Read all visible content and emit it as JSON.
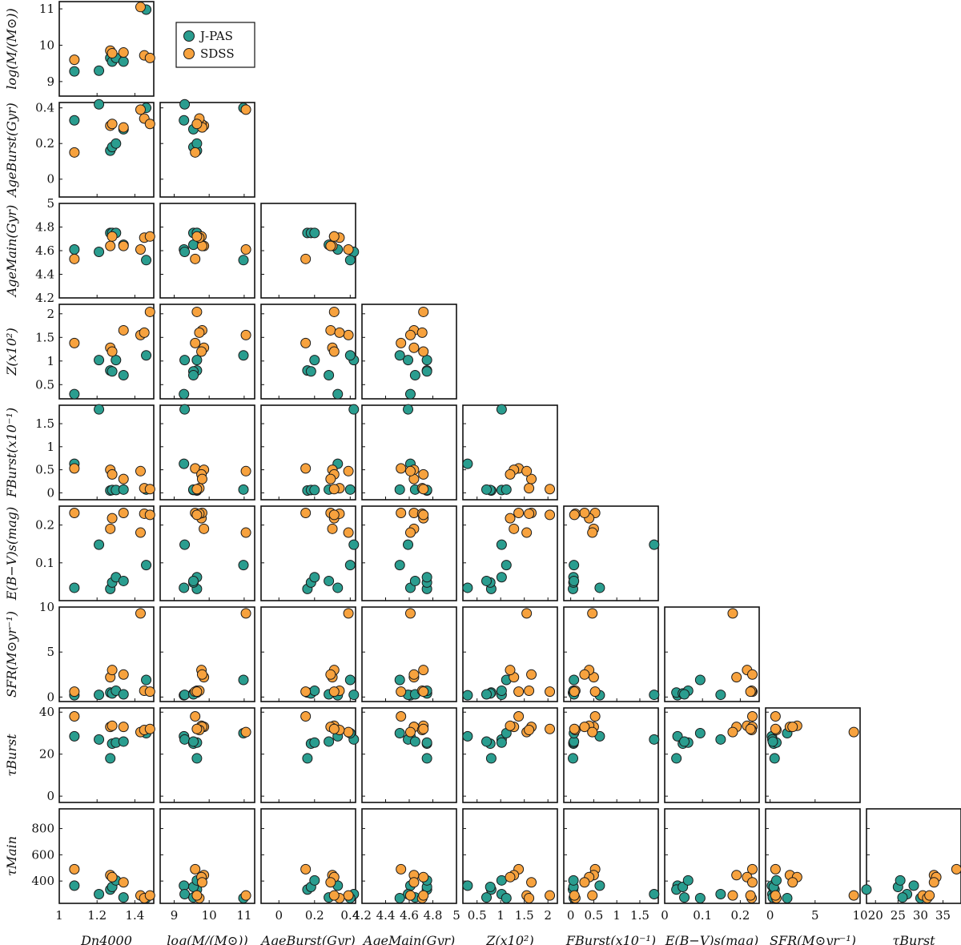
{
  "chart_data": {
    "type": "scatter",
    "title": "",
    "legend": {
      "placement": "top-right of first panel"
    },
    "series": [
      {
        "name": "J-PAS",
        "color": "#2a9d8f"
      },
      {
        "name": "SDSS",
        "color": "#f7a23e"
      }
    ],
    "variables": [
      {
        "key": "dn4000",
        "label": "Dn4000",
        "range": [
          1.0,
          1.5
        ],
        "ticks": [
          1,
          1.2,
          1.4
        ]
      },
      {
        "key": "logm",
        "label": "log(M/(M⊙))",
        "range": [
          8.6,
          11.3
        ],
        "ticks": [
          9,
          10,
          11
        ]
      },
      {
        "key": "ageburst",
        "label": "AgeBurst(Gyr)",
        "range": [
          -0.1,
          0.43
        ],
        "ticks": [
          0,
          0.2,
          0.4
        ]
      },
      {
        "key": "agemain",
        "label": "AgeMain(Gyr)",
        "range": [
          4.2,
          5.0
        ],
        "ticks": [
          4.2,
          4.4,
          4.6,
          4.8,
          5
        ]
      },
      {
        "key": "z",
        "label": "Z(x10²)",
        "range": [
          0.2,
          2.2
        ],
        "ticks": [
          0.5,
          1,
          1.5,
          2
        ]
      },
      {
        "key": "fburst",
        "label": "FBurst(x10⁻¹)",
        "range": [
          -0.15,
          1.9
        ],
        "ticks": [
          0,
          0.5,
          1,
          1.5
        ]
      },
      {
        "key": "ebv",
        "label": "E(B−V)s(mag)",
        "range": [
          0.0,
          0.25
        ],
        "ticks": [
          0,
          0.1,
          0.2
        ]
      },
      {
        "key": "sfr",
        "label": "SFR(M⊙yr⁻¹)",
        "range": [
          -0.5,
          10
        ],
        "ticks": [
          0,
          5,
          10
        ]
      },
      {
        "key": "tauburst",
        "label": "τBurst",
        "range": [
          18,
          39
        ],
        "ticks": [
          20,
          25,
          30,
          35
        ]
      },
      {
        "key": "taumain",
        "label": "τMain",
        "range": [
          230,
          950
        ],
        "ticks": [
          400,
          600,
          800
        ]
      }
    ],
    "row_ranges": {
      "logm": [
        8.6,
        11.2
      ],
      "ageburst": [
        -0.1,
        0.43
      ],
      "agemain": [
        4.2,
        5.0
      ],
      "z": [
        0.2,
        2.2
      ],
      "fburst": [
        -0.15,
        1.9
      ],
      "ebv": [
        0.0,
        0.25
      ],
      "sfr": [
        -0.5,
        10
      ],
      "tauburst": [
        -3,
        42
      ],
      "taumain": [
        230,
        950
      ]
    },
    "row_ticks": {
      "logm": [
        9,
        10,
        11
      ],
      "ageburst": [
        0,
        0.2,
        0.4
      ],
      "agemain": [
        4.2,
        4.4,
        4.6,
        4.8,
        5
      ],
      "z": [
        0.5,
        1,
        1.5,
        2
      ],
      "fburst": [
        0,
        0.5,
        1,
        1.5
      ],
      "ebv": [
        0.1,
        0.2
      ],
      "sfr": [
        0,
        5,
        10
      ],
      "tauburst": [
        0,
        20,
        40
      ],
      "taumain": [
        400,
        600,
        800
      ]
    },
    "points": {
      "J-PAS": [
        {
          "dn4000": 1.08,
          "logm": 9.28,
          "ageburst": 0.33,
          "agemain": 4.61,
          "z": 0.3,
          "fburst": 0.63,
          "ebv": 0.034,
          "sfr": 0.2,
          "tauburst": 28.5,
          "taumain": 365
        },
        {
          "dn4000": 1.21,
          "logm": 9.3,
          "ageburst": 0.42,
          "agemain": 4.59,
          "z": 1.02,
          "fburst": 1.81,
          "ebv": 0.148,
          "sfr": 0.25,
          "tauburst": 27.0,
          "taumain": 300
        },
        {
          "dn4000": 1.27,
          "logm": 9.65,
          "ageburst": 0.16,
          "agemain": 4.75,
          "z": 0.8,
          "fburst": 0.05,
          "ebv": 0.031,
          "sfr": 0.5,
          "tauburst": 18.0,
          "taumain": 335
        },
        {
          "dn4000": 1.28,
          "logm": 9.55,
          "ageburst": 0.18,
          "agemain": 4.75,
          "z": 0.78,
          "fburst": 0.06,
          "ebv": 0.048,
          "sfr": 0.4,
          "tauburst": 25.0,
          "taumain": 355
        },
        {
          "dn4000": 1.3,
          "logm": 9.65,
          "ageburst": 0.2,
          "agemain": 4.75,
          "z": 1.02,
          "fburst": 0.06,
          "ebv": 0.062,
          "sfr": 0.7,
          "tauburst": 25.5,
          "taumain": 405
        },
        {
          "dn4000": 1.34,
          "logm": 9.55,
          "ageburst": 0.28,
          "agemain": 4.65,
          "z": 0.7,
          "fburst": 0.07,
          "ebv": 0.052,
          "sfr": 0.3,
          "tauburst": 26.0,
          "taumain": 275
        },
        {
          "dn4000": 1.46,
          "logm": 10.98,
          "ageburst": 0.4,
          "agemain": 4.52,
          "z": 1.12,
          "fburst": 0.07,
          "ebv": 0.094,
          "sfr": 1.9,
          "tauburst": 30.0,
          "taumain": 270
        }
      ],
      "SDSS": [
        {
          "dn4000": 1.08,
          "logm": 9.6,
          "ageburst": 0.15,
          "agemain": 4.53,
          "z": 1.38,
          "fburst": 0.53,
          "ebv": 0.232,
          "sfr": 0.6,
          "tauburst": 38.0,
          "taumain": 490
        },
        {
          "dn4000": 1.27,
          "logm": 9.85,
          "ageburst": 0.3,
          "agemain": 4.64,
          "z": 1.28,
          "fburst": 0.5,
          "ebv": 0.19,
          "sfr": 2.2,
          "tauburst": 33.0,
          "taumain": 445
        },
        {
          "dn4000": 1.28,
          "logm": 9.78,
          "ageburst": 0.31,
          "agemain": 4.72,
          "z": 1.2,
          "fburst": 0.4,
          "ebv": 0.218,
          "sfr": 3.0,
          "tauburst": 33.5,
          "taumain": 430
        },
        {
          "dn4000": 1.34,
          "logm": 9.8,
          "ageburst": 0.29,
          "agemain": 4.64,
          "z": 1.65,
          "fburst": 0.3,
          "ebv": 0.232,
          "sfr": 2.5,
          "tauburst": 33.0,
          "taumain": 390
        },
        {
          "dn4000": 1.43,
          "logm": 11.05,
          "ageburst": 0.39,
          "agemain": 4.61,
          "z": 1.55,
          "fburst": 0.47,
          "ebv": 0.18,
          "sfr": 9.3,
          "tauburst": 30.5,
          "taumain": 290
        },
        {
          "dn4000": 1.45,
          "logm": 9.72,
          "ageburst": 0.34,
          "agemain": 4.71,
          "z": 1.6,
          "fburst": 0.1,
          "ebv": 0.23,
          "sfr": 0.7,
          "tauburst": 31.5,
          "taumain": 270
        },
        {
          "dn4000": 1.48,
          "logm": 9.65,
          "ageburst": 0.31,
          "agemain": 4.72,
          "z": 2.04,
          "fburst": 0.08,
          "ebv": 0.227,
          "sfr": 0.6,
          "tauburst": 32.0,
          "taumain": 290
        }
      ]
    }
  }
}
